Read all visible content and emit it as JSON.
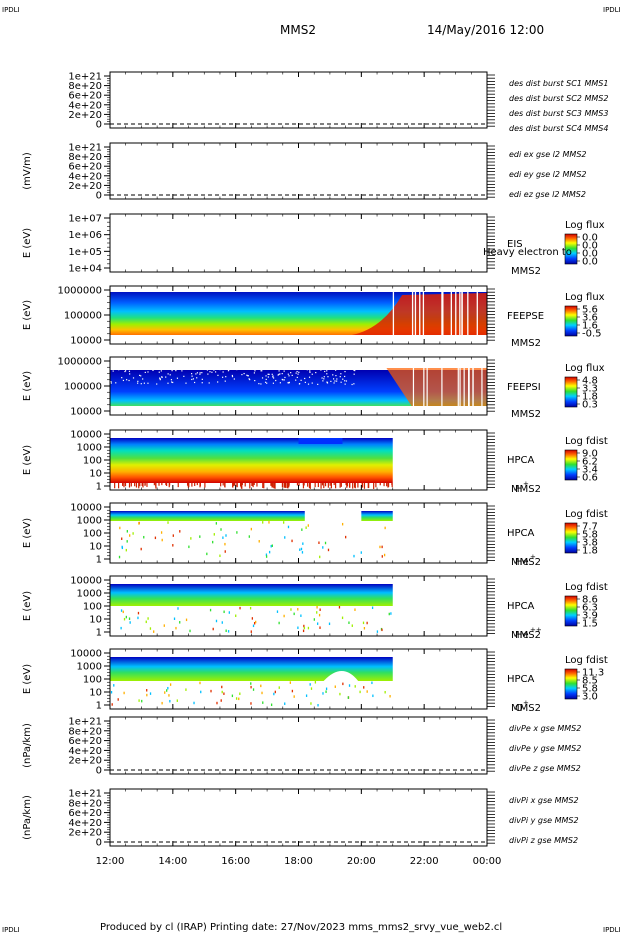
{
  "header": {
    "corner_tl": "IPDLI",
    "corner_tr": "IPDLI",
    "spacecraft": "MMS2",
    "date": "14/May/2016 12:00"
  },
  "footer": {
    "text": "Produced by cl (IRAP)    Printing date: 27/Nov/2023    mms_mms2_srvy_vue_web2.cl",
    "corner_bl": "IPDLI",
    "corner_br": "IPDLI"
  },
  "colors": {
    "blue": "#0000cc",
    "magenta": "#cc00cc",
    "red": "#cc0000",
    "green": "#00bb00"
  },
  "chart_data": [
    {
      "id": "p1",
      "type": "line",
      "title": "",
      "ylabel": "",
      "yticks": [
        "1e+21",
        "8e+20",
        "6e+20",
        "4e+20",
        "2e+20",
        "0"
      ],
      "ylim": [
        0,
        1e+21
      ],
      "series": [
        {
          "name": "des dist burst SC1 MMS1",
          "color": "#0000cc",
          "values": []
        },
        {
          "name": "des dist burst SC2 MMS2",
          "color": "#cc00cc",
          "values": []
        },
        {
          "name": "des dist burst SC3 MMS3",
          "color": "#cc0000",
          "values": []
        },
        {
          "name": "des dist burst SC4 MMS4",
          "color": "#00bb00",
          "values": []
        }
      ]
    },
    {
      "id": "p2",
      "type": "line",
      "title": "",
      "ylabel": "(mV/m)",
      "yticks": [
        "1e+21",
        "8e+20",
        "6e+20",
        "4e+20",
        "2e+20",
        "0"
      ],
      "ylim": [
        0,
        1e+21
      ],
      "series": [
        {
          "name": "edi ex gse l2 MMS2",
          "color": "#cc0000",
          "values": []
        },
        {
          "name": "edi ey gse l2 MMS2",
          "color": "#00bb00",
          "values": []
        },
        {
          "name": "edi ez gse l2 MMS2",
          "color": "#0000cc",
          "values": []
        }
      ]
    },
    {
      "id": "p3",
      "type": "heatmap",
      "ylabel": "E (eV)",
      "yticks": [
        "1e+07",
        "1e+06",
        "1e+05",
        "1e+04"
      ],
      "ylim": [
        10000,
        10000000
      ],
      "yscale": "log",
      "instrument": "EIS",
      "spacecraft": "MMS2",
      "overlay_text": "Heavy electron to",
      "colorbar": {
        "title": "Log flux",
        "ticks": [
          "0.0",
          "0.0",
          "0.0",
          "0.0"
        ]
      },
      "coverage": []
    },
    {
      "id": "p4",
      "type": "heatmap",
      "ylabel": "E (eV)",
      "yticks": [
        "1000000",
        "100000",
        "10000"
      ],
      "ylim": [
        10000,
        1000000
      ],
      "yscale": "log",
      "instrument": "FEEPSE",
      "spacecraft": "MMS2",
      "colorbar": {
        "title": "Log flux",
        "ticks": [
          "5.6",
          "3.6",
          "1.6",
          "-0.5"
        ]
      },
      "coverage": [
        [
          12.0,
          24.0
        ]
      ]
    },
    {
      "id": "p5",
      "type": "heatmap",
      "ylabel": "E (eV)",
      "yticks": [
        "1000000",
        "100000",
        "10000"
      ],
      "ylim": [
        10000,
        1000000
      ],
      "yscale": "log",
      "instrument": "FEEPSI",
      "spacecraft": "MMS2",
      "colorbar": {
        "title": "Log flux",
        "ticks": [
          "4.8",
          "3.3",
          "1.8",
          "0.3"
        ]
      },
      "coverage": [
        [
          12.0,
          24.0
        ]
      ]
    },
    {
      "id": "p6",
      "type": "heatmap",
      "ylabel": "E (eV)",
      "yticks": [
        "10000",
        "1000",
        "100",
        "10",
        "1"
      ],
      "ylim": [
        1,
        30000
      ],
      "yscale": "log",
      "instrument": "HPCA",
      "spacecraft": "MMS2",
      "species": "H",
      "charge": "+",
      "colorbar": {
        "title": "Log fdist",
        "ticks": [
          "9.0",
          "6.2",
          "3.4",
          "0.6"
        ]
      },
      "coverage": [
        [
          12.0,
          21.0
        ]
      ]
    },
    {
      "id": "p7",
      "type": "heatmap",
      "ylabel": "E (eV)",
      "yticks": [
        "10000",
        "1000",
        "100",
        "10",
        "1"
      ],
      "ylim": [
        1,
        30000
      ],
      "yscale": "log",
      "instrument": "HPCA",
      "spacecraft": "MMS2",
      "species": "He",
      "charge": "+",
      "colorbar": {
        "title": "Log fdist",
        "ticks": [
          "7.7",
          "5.8",
          "3.8",
          "1.8"
        ]
      },
      "coverage": [
        [
          12.0,
          21.0
        ]
      ]
    },
    {
      "id": "p8",
      "type": "heatmap",
      "ylabel": "E (eV)",
      "yticks": [
        "10000",
        "1000",
        "100",
        "10",
        "1"
      ],
      "ylim": [
        1,
        30000
      ],
      "yscale": "log",
      "instrument": "HPCA",
      "spacecraft": "MMS2",
      "species": "He",
      "charge": "++",
      "colorbar": {
        "title": "Log fdist",
        "ticks": [
          "8.6",
          "6.3",
          "3.9",
          "1.5"
        ]
      },
      "coverage": [
        [
          12.0,
          21.0
        ]
      ]
    },
    {
      "id": "p9",
      "type": "heatmap",
      "ylabel": "E (eV)",
      "yticks": [
        "10000",
        "1000",
        "100",
        "10",
        "1"
      ],
      "ylim": [
        1,
        30000
      ],
      "yscale": "log",
      "instrument": "HPCA",
      "spacecraft": "MMS2",
      "species": "O",
      "charge": "+",
      "colorbar": {
        "title": "Log fdist",
        "ticks": [
          "11.3",
          "8.5",
          "5.8",
          "3.0"
        ]
      },
      "coverage": [
        [
          12.0,
          21.0
        ]
      ]
    },
    {
      "id": "p10",
      "type": "line",
      "title": "",
      "ylabel": "(nPa/km)",
      "yticks": [
        "1e+21",
        "8e+20",
        "6e+20",
        "4e+20",
        "2e+20",
        "0"
      ],
      "ylim": [
        0,
        1e+21
      ],
      "series": [
        {
          "name": "divPe x gse MMS2",
          "color": "#cc0000",
          "values": []
        },
        {
          "name": "divPe y gse MMS2",
          "color": "#00bb00",
          "values": []
        },
        {
          "name": "divPe z gse MMS2",
          "color": "#0000cc",
          "values": []
        }
      ]
    },
    {
      "id": "p11",
      "type": "line",
      "title": "",
      "ylabel": "(nPa/km)",
      "yticks": [
        "1e+21",
        "8e+20",
        "6e+20",
        "4e+20",
        "2e+20",
        "0"
      ],
      "ylim": [
        0,
        1e+21
      ],
      "series": [
        {
          "name": "divPi x gse MMS2",
          "color": "#cc0000",
          "values": []
        },
        {
          "name": "divPi y gse MMS2",
          "color": "#00bb00",
          "values": []
        },
        {
          "name": "divPi z gse MMS2",
          "color": "#0000cc",
          "values": []
        }
      ]
    }
  ],
  "time_axis": {
    "range": [
      12,
      24
    ],
    "ticks": [
      {
        "v": 12,
        "label": "12:00"
      },
      {
        "v": 14,
        "label": "14:00"
      },
      {
        "v": 16,
        "label": "16:00"
      },
      {
        "v": 18,
        "label": "18:00"
      },
      {
        "v": 20,
        "label": "20:00"
      },
      {
        "v": 22,
        "label": "22:00"
      },
      {
        "v": 24,
        "label": "00:00"
      }
    ]
  }
}
